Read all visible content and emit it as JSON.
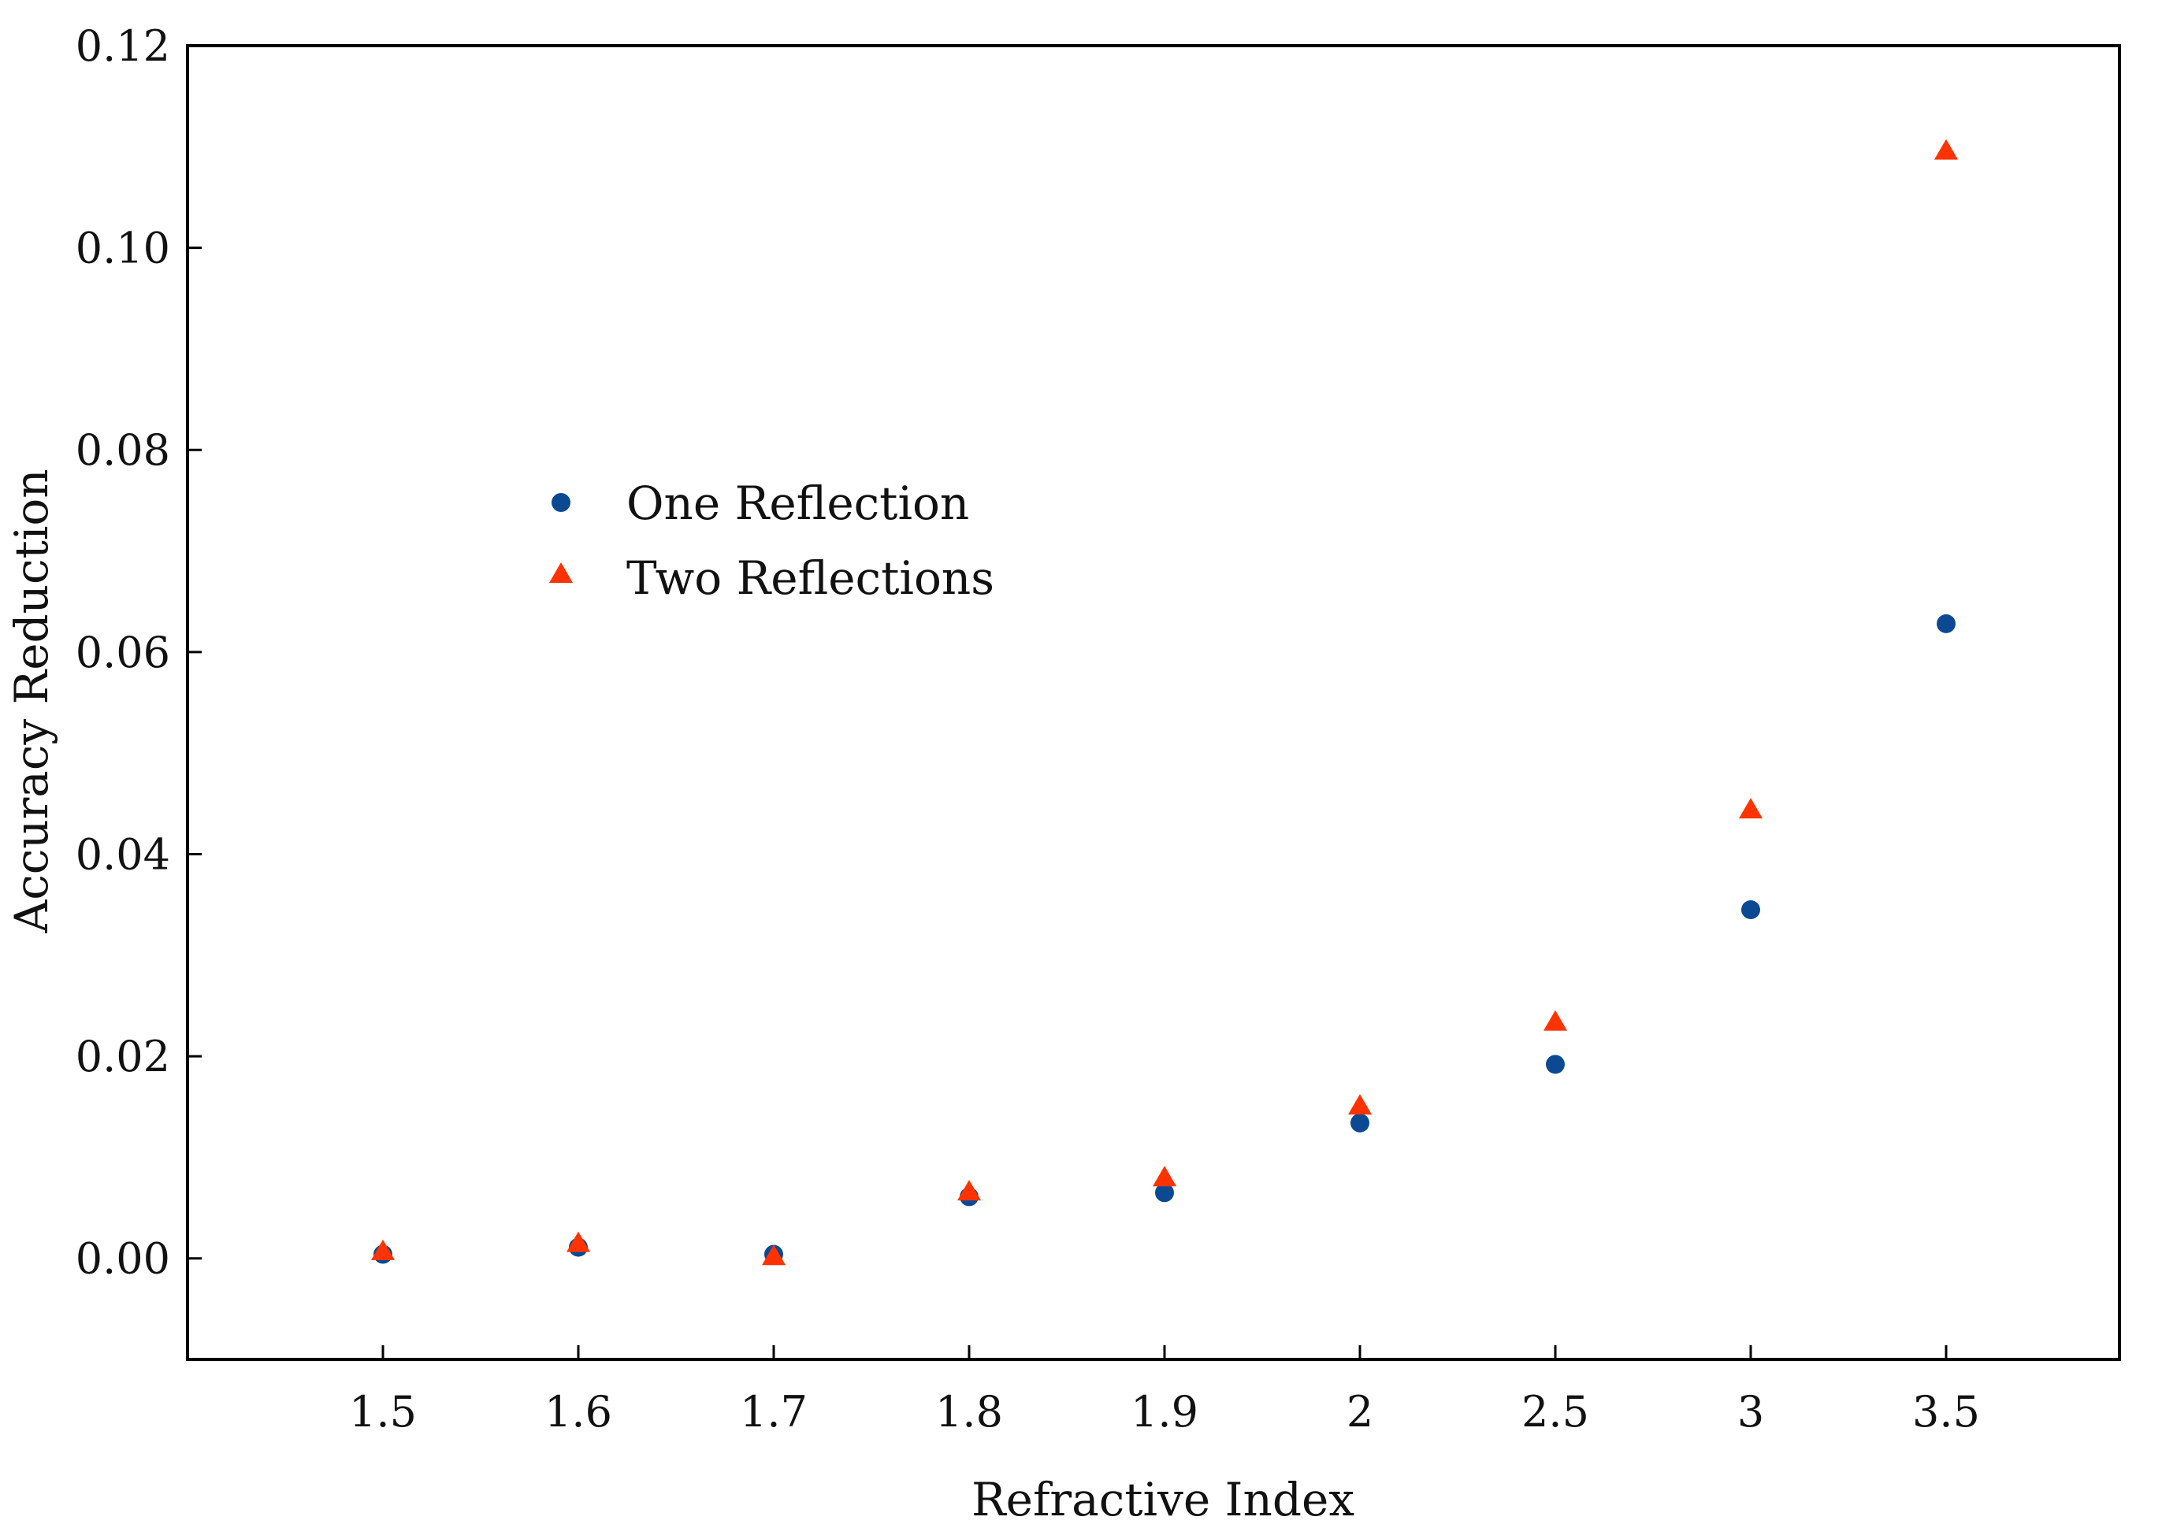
{
  "chart_data": {
    "type": "scatter",
    "title": "",
    "xlabel": "Refractive Index",
    "ylabel": "Accuracy Reduction",
    "categories": [
      "1.5",
      "1.6",
      "1.7",
      "1.8",
      "1.9",
      "2",
      "2.5",
      "3",
      "3.5"
    ],
    "ylim": [
      -0.01,
      0.12
    ],
    "yticks": [
      "0.00",
      "0.02",
      "0.04",
      "0.06",
      "0.08",
      "0.10",
      "0.12"
    ],
    "ytick_values": [
      0.0,
      0.02,
      0.04,
      0.06,
      0.08,
      0.1,
      0.12
    ],
    "grid": false,
    "legend_position": "center-left",
    "series": [
      {
        "name": "One Reflection",
        "marker": "circle",
        "color": "#0b4a92",
        "values": [
          0.0004,
          0.0011,
          0.0004,
          0.0061,
          0.0065,
          0.0134,
          0.0192,
          0.0345,
          0.0628
        ]
      },
      {
        "name": "Two Reflections",
        "marker": "triangle",
        "color": "#ff3300",
        "values": [
          0.0006,
          0.0014,
          0.0001,
          0.0065,
          0.0079,
          0.015,
          0.0233,
          0.0443,
          0.1095
        ]
      }
    ]
  }
}
